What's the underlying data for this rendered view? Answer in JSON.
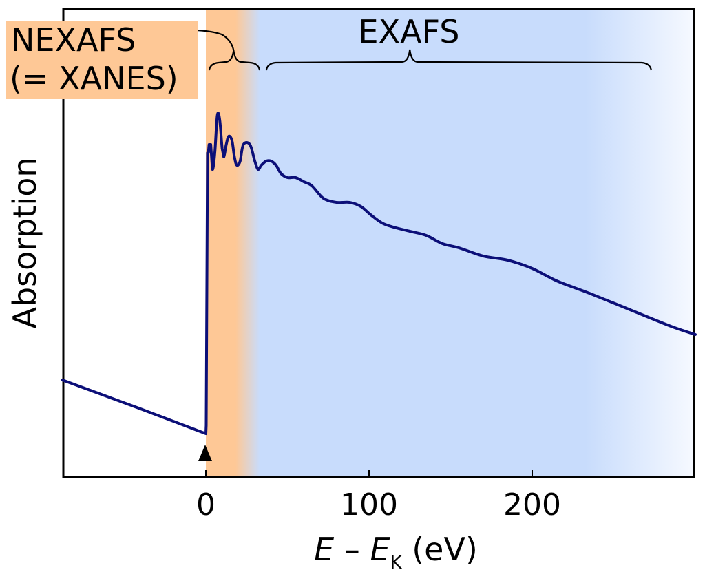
{
  "chart_data": {
    "type": "line",
    "title": "",
    "xlabel": {
      "main": "E",
      "dash": " – ",
      "sub_base": "E",
      "sub": "K",
      "unit": " (eV)"
    },
    "ylabel": "Absorption",
    "xlim": [
      -88,
      300
    ],
    "x_ticks": [
      {
        "value": 0,
        "label": "0"
      },
      {
        "value": 100,
        "label": "100"
      },
      {
        "value": 200,
        "label": "200"
      }
    ],
    "y_ticks": [],
    "grid": false,
    "legend": "none",
    "edge_energy": 0,
    "regions": [
      {
        "name": "nexafs",
        "label_lines": [
          "NEXAFS",
          "(= XANES)"
        ],
        "x_start": 0,
        "x_end": 33,
        "color": "#fec896"
      },
      {
        "name": "exafs",
        "label_lines": [
          "EXAFS"
        ],
        "x_start": 33,
        "x_end": 300,
        "color": "#c8dcfc"
      }
    ],
    "series": [
      {
        "color": "#0c0f78",
        "points": [
          [
            -88,
            0.23
          ],
          [
            -40,
            0.16
          ],
          [
            0,
            0.1
          ],
          [
            0.2,
            0.12
          ],
          [
            1,
            0.78
          ],
          [
            1.5,
            0.78
          ],
          [
            2,
            0.8
          ],
          [
            3,
            0.8
          ],
          [
            4,
            0.74
          ],
          [
            5.5,
            0.78
          ],
          [
            7,
            0.87
          ],
          [
            8.5,
            0.86
          ],
          [
            10,
            0.79
          ],
          [
            11,
            0.77
          ],
          [
            12.5,
            0.8
          ],
          [
            14,
            0.82
          ],
          [
            16,
            0.81
          ],
          [
            17.5,
            0.77
          ],
          [
            19,
            0.75
          ],
          [
            21,
            0.76
          ],
          [
            23,
            0.8
          ],
          [
            27,
            0.8
          ],
          [
            30,
            0.76
          ],
          [
            32,
            0.74
          ],
          [
            34,
            0.75
          ],
          [
            37,
            0.76
          ],
          [
            40,
            0.76
          ],
          [
            43,
            0.75
          ],
          [
            46,
            0.73
          ],
          [
            50,
            0.72
          ],
          [
            55,
            0.72
          ],
          [
            60,
            0.71
          ],
          [
            65,
            0.7
          ],
          [
            72,
            0.67
          ],
          [
            80,
            0.66
          ],
          [
            88,
            0.66
          ],
          [
            95,
            0.65
          ],
          [
            101,
            0.63
          ],
          [
            108,
            0.61
          ],
          [
            115,
            0.6
          ],
          [
            125,
            0.59
          ],
          [
            135,
            0.58
          ],
          [
            145,
            0.56
          ],
          [
            155,
            0.55
          ],
          [
            170,
            0.53
          ],
          [
            185,
            0.52
          ],
          [
            200,
            0.5
          ],
          [
            215,
            0.47
          ],
          [
            235,
            0.44
          ],
          [
            260,
            0.4
          ],
          [
            285,
            0.36
          ],
          [
            300,
            0.34
          ]
        ]
      }
    ]
  }
}
